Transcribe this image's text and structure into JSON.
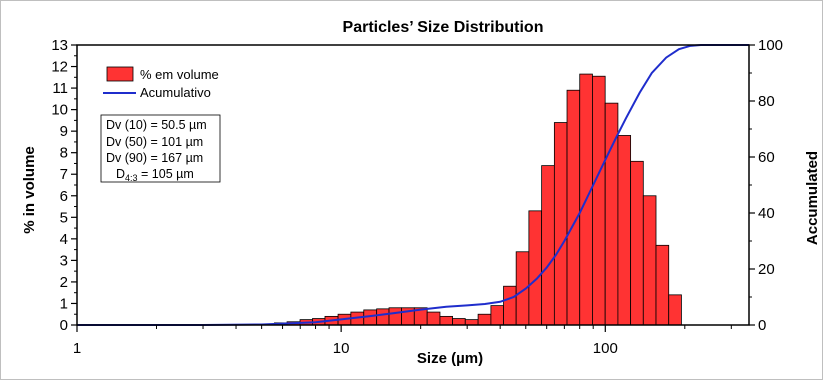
{
  "chart_data": {
    "type": "bar",
    "title": "Particles’ Size Distribution",
    "xlabel": "Size (µm)",
    "ylabel": "% in volume",
    "y2label": "Accumulated",
    "x_scale": "log",
    "xlim": [
      1,
      350
    ],
    "ylim": [
      0,
      13
    ],
    "y2lim": [
      0,
      100
    ],
    "x_ticks": [
      "1",
      "10",
      "100"
    ],
    "y_ticks": [
      "0",
      "1",
      "2",
      "3",
      "4",
      "5",
      "6",
      "7",
      "8",
      "9",
      "10",
      "11",
      "12",
      "13"
    ],
    "y2_ticks": [
      "0",
      "20",
      "40",
      "60",
      "80",
      "100"
    ],
    "grid": false,
    "legend_position": "top-left",
    "bar_color": "#ff3333",
    "line_color": "#1f2dcc",
    "series": [
      {
        "name": "% em volume",
        "type": "bar",
        "x": [
          4.7,
          5.3,
          5.9,
          6.6,
          7.4,
          8.2,
          9.2,
          10.3,
          11.5,
          12.9,
          14.4,
          16.0,
          17.9,
          20.0,
          22.4,
          25.0,
          27.9,
          31.2,
          34.9,
          39.0,
          43.5,
          48.6,
          54.3,
          60.7,
          67.8,
          75.7,
          84.6,
          94.5,
          105.6,
          118.0,
          131.8,
          147.2,
          164.5,
          183.7,
          205.3,
          229.3
        ],
        "values": [
          0.02,
          0.05,
          0.1,
          0.15,
          0.25,
          0.3,
          0.4,
          0.5,
          0.6,
          0.7,
          0.75,
          0.8,
          0.8,
          0.8,
          0.6,
          0.4,
          0.3,
          0.25,
          0.5,
          0.9,
          1.8,
          3.4,
          5.3,
          7.4,
          9.4,
          10.9,
          11.65,
          11.55,
          10.3,
          8.8,
          7.6,
          6.0,
          3.7,
          1.4,
          0,
          0
        ]
      },
      {
        "name": "Acumulativo",
        "type": "line",
        "axis": "right",
        "x": [
          1,
          3,
          5,
          8,
          10,
          13,
          16,
          20,
          25,
          30,
          35,
          40,
          45,
          50,
          55,
          60,
          65,
          70,
          80,
          90,
          100,
          110,
          120,
          135,
          150,
          170,
          190,
          210,
          230,
          350
        ],
        "values": [
          0,
          0,
          0.2,
          1.0,
          2.0,
          3.2,
          4.3,
          5.5,
          6.5,
          7.0,
          7.5,
          8.3,
          10,
          13,
          16.5,
          20.5,
          25,
          30,
          40,
          50,
          59,
          67,
          74,
          83,
          90,
          95.5,
          98.5,
          99.7,
          100,
          100
        ]
      }
    ],
    "annotations": [
      {
        "label": "Dv (10) = ",
        "value": "50.5",
        "unit": " µm"
      },
      {
        "label": "Dv (50) = ",
        "value": "101",
        "unit": "  µm"
      },
      {
        "label": "Dv (90) = ",
        "value": "167",
        "unit": "  µm"
      },
      {
        "label": "D",
        "sub": "4:3",
        "value": " = 105 µm"
      }
    ]
  }
}
